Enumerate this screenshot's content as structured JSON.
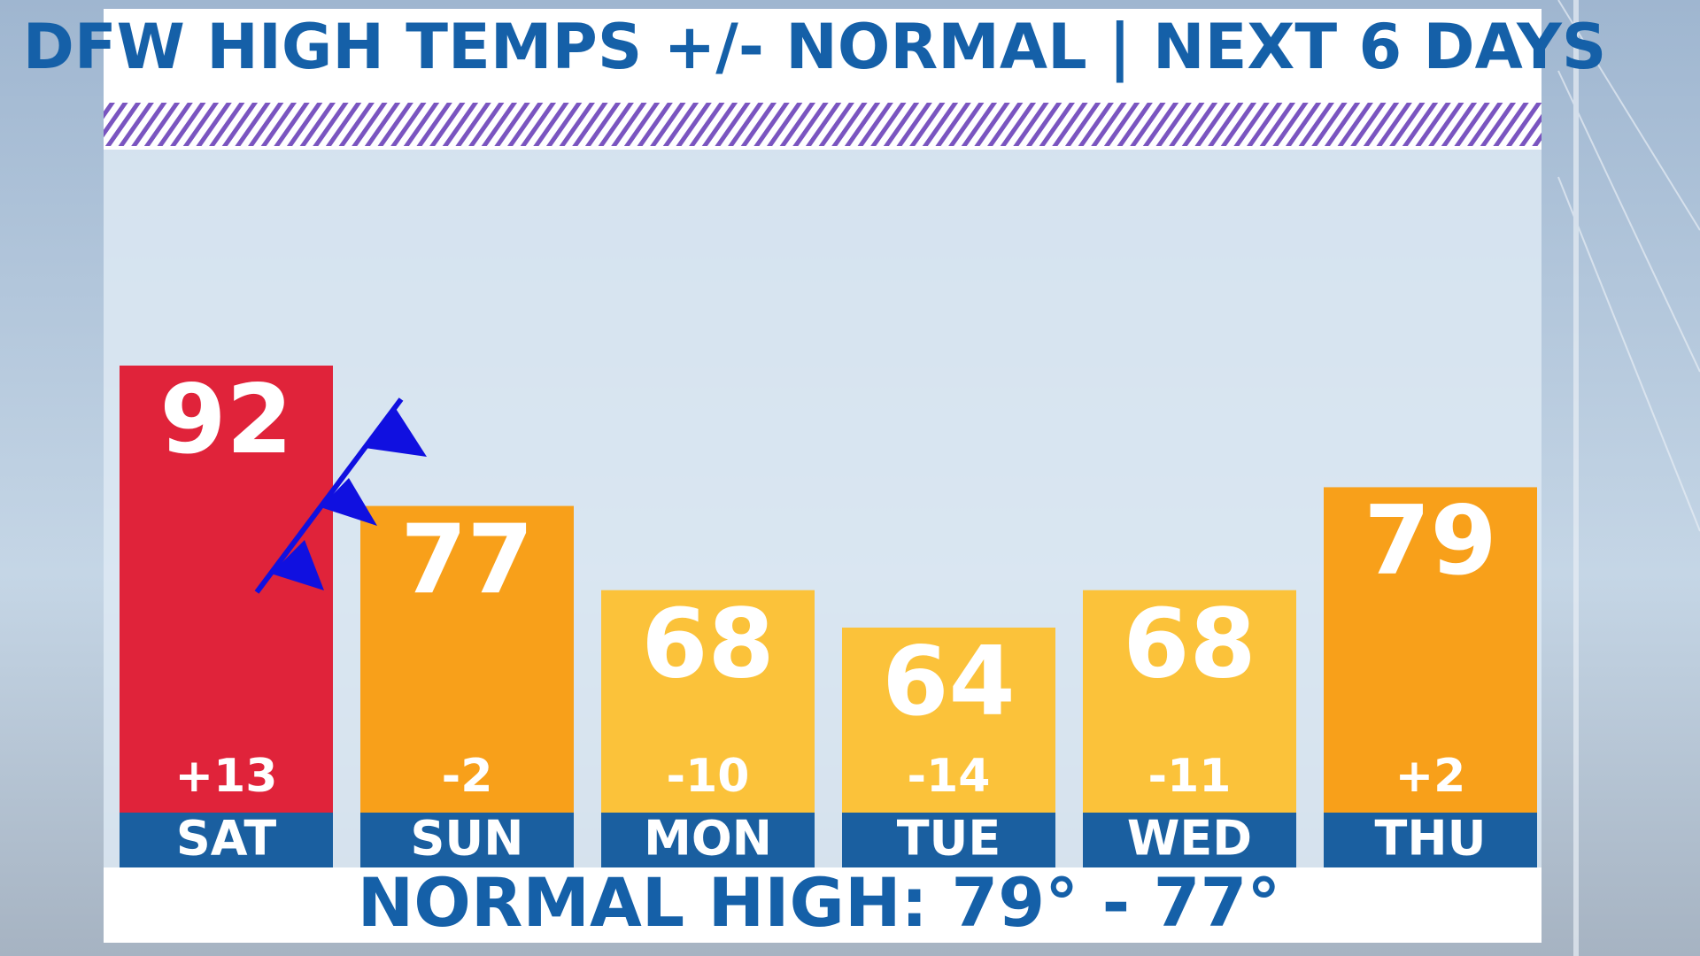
{
  "chart_data": {
    "type": "bar",
    "title": "DFW HIGH TEMPS +/- NORMAL | NEXT 6 DAYS",
    "categories": [
      "SAT",
      "SUN",
      "MON",
      "TUE",
      "WED",
      "THU"
    ],
    "values": [
      92,
      77,
      68,
      64,
      68,
      79
    ],
    "colors": [
      "#e0233a",
      "#f8a01a",
      "#fbc23a",
      "#fbc23a",
      "#fbc23a",
      "#f8a01a"
    ],
    "departures": {
      "values": [
        13,
        -2,
        -10,
        -14,
        -11,
        2
      ],
      "value_labels": [
        "+13",
        "-2",
        "-10",
        "-14",
        "-11",
        "+2"
      ]
    },
    "footer": "NORMAL HIGH: 79° - 77°"
  }
}
